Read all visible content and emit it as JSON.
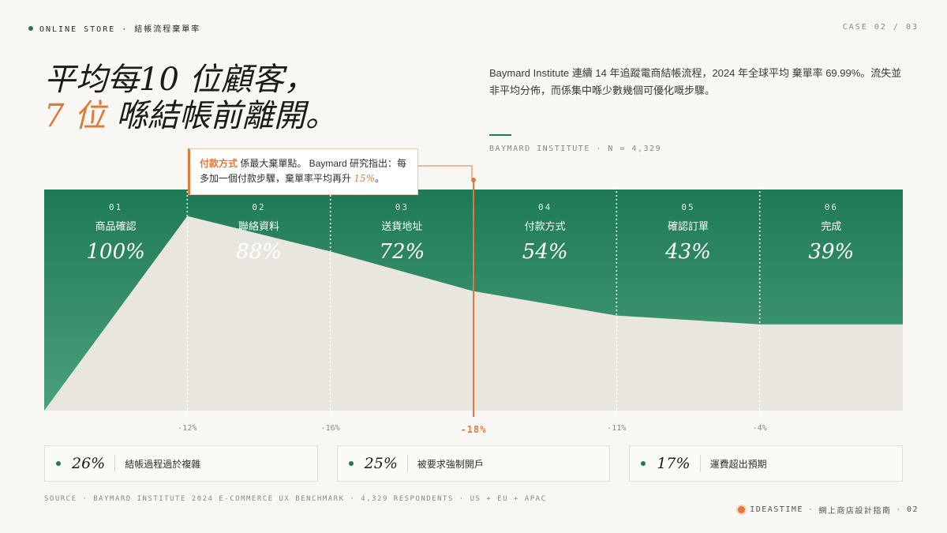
{
  "header": {
    "section": "ONLINE STORE · 結帳流程棄單率",
    "case": "CASE 02 / 03"
  },
  "headline": {
    "line1": "平均每10 位顧客，",
    "accent": "7 位",
    "line2_rest": " 喺結帳前離開。"
  },
  "intro": "Baymard Institute 連續 14 年追蹤電商結帳流程，2024 年全球平均 棄單率 69.99%。流失並非平均分佈，而係集中喺少數幾個可優化嘅步驟。",
  "source_tag": "BAYMARD INSTITUTE · N = 4,329",
  "callout": {
    "highlight": "付款方式",
    "text1": " 係最大棄單點。 Baymard 研究指出：每多加一個付款步驟，棄單率平均再升 ",
    "pct": "15%",
    "text2": "。"
  },
  "chart_data": {
    "type": "area",
    "steps": [
      {
        "num": "01",
        "name": "商品確認",
        "value": 100,
        "label": "100%"
      },
      {
        "num": "02",
        "name": "聯絡資料",
        "value": 88,
        "label": "88%"
      },
      {
        "num": "03",
        "name": "送貨地址",
        "value": 72,
        "label": "72%"
      },
      {
        "num": "04",
        "name": "付款方式",
        "value": 54,
        "label": "54%"
      },
      {
        "num": "05",
        "name": "確認訂單",
        "value": 43,
        "label": "43%"
      },
      {
        "num": "06",
        "name": "完成",
        "value": 39,
        "label": "39%"
      }
    ],
    "drops": [
      "-12%",
      "-16%",
      "-18%",
      "-11%",
      "-4%"
    ],
    "highlight_drop_index": 2,
    "ylim": [
      0,
      100
    ],
    "colors": {
      "retained": "#1e7a55",
      "lost": "#e9e6e0",
      "highlight": "#e07a3a"
    }
  },
  "cards": [
    {
      "value": "26%",
      "label": "結帳過程過於複雜"
    },
    {
      "value": "25%",
      "label": "被要求強制開戶"
    },
    {
      "value": "17%",
      "label": "運費超出預期"
    }
  ],
  "footer": {
    "source": "SOURCE · BAYMARD INSTITUTE 2024 E-COMMERCE UX BENCHMARK · 4,329 RESPONDENTS · US + EU + APAC",
    "brand": "IDEASTIME",
    "brand_sub": "網上商店設計指南",
    "page": "02"
  }
}
